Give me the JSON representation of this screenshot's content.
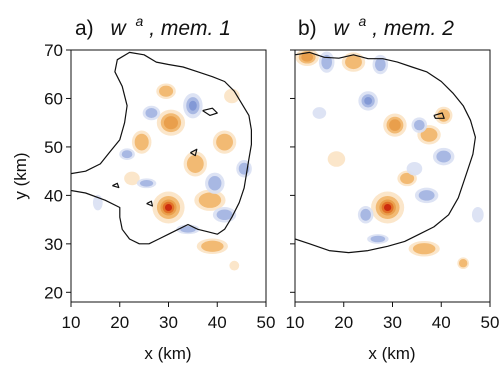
{
  "chart_data": [
    {
      "type": "heatmap",
      "panel_letter": "a)",
      "title_symbol": "w",
      "title_superscript": "a",
      "title_rest": ", mem. 1",
      "xlabel": "x (km)",
      "ylabel": "y (km)",
      "xlim": [
        10,
        50
      ],
      "ylim": [
        18,
        70
      ],
      "xticks": [
        10,
        20,
        30,
        40,
        50
      ],
      "yticks": [
        20,
        30,
        40,
        50,
        60,
        70
      ],
      "grid": false,
      "colors": {
        "strong_positive": "#c81e0a",
        "positive": "#f0b264",
        "weak_positive": "#fbe3c4",
        "negative": "#9fb0df",
        "weak_negative": "#d9e0f3"
      },
      "features": [
        {
          "sign": "positive",
          "x": 30.0,
          "y": 37.5,
          "rx": 3.3,
          "ry": 3.3,
          "amp": 1.0
        },
        {
          "sign": "positive",
          "x": 30.5,
          "y": 55.0,
          "rx": 2.9,
          "ry": 2.7,
          "amp": 0.6
        },
        {
          "sign": "positive",
          "x": 35.5,
          "y": 46.5,
          "rx": 2.4,
          "ry": 2.6,
          "amp": 0.3
        },
        {
          "sign": "positive",
          "x": 38.5,
          "y": 39.0,
          "rx": 3.2,
          "ry": 2.2,
          "amp": 0.28
        },
        {
          "sign": "positive",
          "x": 41.5,
          "y": 51.0,
          "rx": 2.4,
          "ry": 2.4,
          "amp": 0.26
        },
        {
          "sign": "positive",
          "x": 24.5,
          "y": 51.0,
          "rx": 2.0,
          "ry": 2.4,
          "amp": 0.22
        },
        {
          "sign": "positive",
          "x": 39.0,
          "y": 29.5,
          "rx": 3.2,
          "ry": 1.6,
          "amp": 0.25
        },
        {
          "sign": "positive",
          "x": 29.5,
          "y": 61.5,
          "rx": 2.0,
          "ry": 1.6,
          "amp": 0.2
        },
        {
          "sign": "positive",
          "x": 43.0,
          "y": 60.5,
          "rx": 1.6,
          "ry": 1.5,
          "amp": 0.18
        },
        {
          "sign": "positive",
          "x": 43.5,
          "y": 25.5,
          "rx": 1.0,
          "ry": 1.0,
          "amp": 0.15
        },
        {
          "sign": "positive",
          "x": 22.5,
          "y": 43.5,
          "rx": 1.6,
          "ry": 1.4,
          "amp": 0.15
        },
        {
          "sign": "negative",
          "x": 35.0,
          "y": 58.5,
          "rx": 2.0,
          "ry": 2.6,
          "amp": 0.45
        },
        {
          "sign": "negative",
          "x": 39.5,
          "y": 42.5,
          "rx": 2.0,
          "ry": 2.2,
          "amp": 0.3
        },
        {
          "sign": "negative",
          "x": 41.5,
          "y": 36.0,
          "rx": 2.4,
          "ry": 1.6,
          "amp": 0.22
        },
        {
          "sign": "negative",
          "x": 26.5,
          "y": 57.0,
          "rx": 1.8,
          "ry": 1.5,
          "amp": 0.22
        },
        {
          "sign": "negative",
          "x": 21.5,
          "y": 48.5,
          "rx": 1.6,
          "ry": 1.2,
          "amp": 0.2
        },
        {
          "sign": "negative",
          "x": 25.5,
          "y": 42.5,
          "rx": 2.0,
          "ry": 1.0,
          "amp": 0.2
        },
        {
          "sign": "negative",
          "x": 34.0,
          "y": 33.0,
          "rx": 2.4,
          "ry": 1.0,
          "amp": 0.2
        },
        {
          "sign": "negative",
          "x": 45.5,
          "y": 45.5,
          "rx": 1.6,
          "ry": 1.8,
          "amp": 0.2
        },
        {
          "sign": "negative",
          "x": 15.5,
          "y": 38.5,
          "rx": 1.0,
          "ry": 1.6,
          "amp": 0.15
        }
      ],
      "contours": [
        [
          [
            10,
            44.5
          ],
          [
            13,
            45
          ],
          [
            16,
            46.5
          ],
          [
            18,
            49
          ],
          [
            20,
            51.5
          ],
          [
            21,
            55
          ],
          [
            21.5,
            58.5
          ],
          [
            20.5,
            62.5
          ],
          [
            19,
            65.5
          ],
          [
            19.5,
            68
          ],
          [
            22,
            69.5
          ],
          [
            25,
            69
          ],
          [
            27.5,
            67.5
          ],
          [
            30,
            67
          ],
          [
            33,
            66.5
          ],
          [
            36,
            65.5
          ],
          [
            39,
            64.5
          ],
          [
            41.5,
            63.5
          ],
          [
            43.5,
            61.5
          ],
          [
            45,
            59
          ],
          [
            46.5,
            56.5
          ],
          [
            47,
            53.5
          ],
          [
            47,
            50.5
          ],
          [
            46.5,
            47.5
          ],
          [
            46,
            44.5
          ],
          [
            45.5,
            41.5
          ],
          [
            44.5,
            38.5
          ],
          [
            43,
            35.5
          ],
          [
            41.5,
            33
          ],
          [
            40,
            32
          ],
          [
            38,
            32.5
          ],
          [
            36,
            33
          ],
          [
            34,
            34
          ],
          [
            32,
            33
          ],
          [
            30,
            32
          ],
          [
            28,
            31
          ],
          [
            26,
            30
          ],
          [
            24,
            30
          ],
          [
            22,
            31
          ],
          [
            20.5,
            33
          ],
          [
            20,
            35.5
          ],
          [
            20,
            37.5
          ],
          [
            17,
            39
          ],
          [
            13,
            40.5
          ],
          [
            10,
            41
          ]
        ],
        [
          [
            37,
            57.5
          ],
          [
            39,
            58
          ],
          [
            40,
            57
          ],
          [
            38.5,
            56.5
          ],
          [
            37,
            57.5
          ]
        ],
        [
          [
            34.5,
            48.8
          ],
          [
            35.8,
            49.5
          ],
          [
            35.5,
            48.2
          ],
          [
            34.5,
            48.8
          ]
        ],
        [
          [
            18.5,
            42
          ],
          [
            19.5,
            42.5
          ],
          [
            19.8,
            41.6
          ],
          [
            18.5,
            42
          ]
        ],
        [
          [
            25.5,
            38.3
          ],
          [
            26.5,
            38.8
          ],
          [
            26.7,
            37.8
          ],
          [
            25.5,
            38.3
          ]
        ]
      ]
    },
    {
      "type": "heatmap",
      "panel_letter": "b)",
      "title_symbol": "w",
      "title_superscript": "a",
      "title_rest": ", mem. 2",
      "xlabel": "x (km)",
      "xlim": [
        10,
        50
      ],
      "ylim": [
        18,
        70
      ],
      "xticks": [
        10,
        20,
        30,
        40,
        50
      ],
      "grid": false,
      "features": [
        {
          "sign": "positive",
          "x": 29.0,
          "y": 37.5,
          "rx": 3.4,
          "ry": 3.3,
          "amp": 1.0
        },
        {
          "sign": "positive",
          "x": 30.5,
          "y": 54.5,
          "rx": 2.4,
          "ry": 2.4,
          "amp": 0.65
        },
        {
          "sign": "positive",
          "x": 12.5,
          "y": 68.5,
          "rx": 2.4,
          "ry": 1.8,
          "amp": 0.5
        },
        {
          "sign": "positive",
          "x": 22.0,
          "y": 67.5,
          "rx": 2.4,
          "ry": 2.0,
          "amp": 0.3
        },
        {
          "sign": "positive",
          "x": 37.5,
          "y": 52.5,
          "rx": 2.4,
          "ry": 2.0,
          "amp": 0.28
        },
        {
          "sign": "positive",
          "x": 40.5,
          "y": 56.5,
          "rx": 1.8,
          "ry": 1.8,
          "amp": 0.22
        },
        {
          "sign": "positive",
          "x": 33.0,
          "y": 43.5,
          "rx": 2.0,
          "ry": 1.6,
          "amp": 0.22
        },
        {
          "sign": "positive",
          "x": 36.5,
          "y": 29.0,
          "rx": 3.2,
          "ry": 1.6,
          "amp": 0.22
        },
        {
          "sign": "positive",
          "x": 18.5,
          "y": 47.5,
          "rx": 1.8,
          "ry": 1.6,
          "amp": 0.15
        },
        {
          "sign": "positive",
          "x": 44.5,
          "y": 26.0,
          "rx": 1.2,
          "ry": 1.2,
          "amp": 0.2
        },
        {
          "sign": "negative",
          "x": 25.0,
          "y": 59.5,
          "rx": 2.0,
          "ry": 2.0,
          "amp": 0.42
        },
        {
          "sign": "negative",
          "x": 16.5,
          "y": 67.5,
          "rx": 1.6,
          "ry": 2.2,
          "amp": 0.28
        },
        {
          "sign": "negative",
          "x": 27.5,
          "y": 67.0,
          "rx": 1.6,
          "ry": 2.0,
          "amp": 0.28
        },
        {
          "sign": "negative",
          "x": 35.5,
          "y": 54.5,
          "rx": 1.6,
          "ry": 1.6,
          "amp": 0.3
        },
        {
          "sign": "negative",
          "x": 40.5,
          "y": 48.0,
          "rx": 2.2,
          "ry": 1.8,
          "amp": 0.28
        },
        {
          "sign": "negative",
          "x": 37.0,
          "y": 40.0,
          "rx": 2.4,
          "ry": 1.6,
          "amp": 0.25
        },
        {
          "sign": "negative",
          "x": 24.5,
          "y": 36.0,
          "rx": 1.6,
          "ry": 1.8,
          "amp": 0.22
        },
        {
          "sign": "negative",
          "x": 27.0,
          "y": 31.0,
          "rx": 2.2,
          "ry": 1.0,
          "amp": 0.2
        },
        {
          "sign": "negative",
          "x": 34.5,
          "y": 45.5,
          "rx": 1.6,
          "ry": 1.4,
          "amp": 0.18
        },
        {
          "sign": "negative",
          "x": 15.0,
          "y": 57.0,
          "rx": 1.4,
          "ry": 1.2,
          "amp": 0.15
        },
        {
          "sign": "negative",
          "x": 47.5,
          "y": 36.0,
          "rx": 1.2,
          "ry": 1.6,
          "amp": 0.15
        }
      ],
      "contours": [
        [
          [
            10,
            69
          ],
          [
            13,
            69.5
          ],
          [
            16,
            68.5
          ],
          [
            19,
            68.3
          ],
          [
            22,
            69
          ],
          [
            25,
            68.2
          ],
          [
            28,
            68.2
          ],
          [
            31,
            67.5
          ],
          [
            34,
            66.5
          ],
          [
            37,
            65.5
          ],
          [
            40,
            63.5
          ],
          [
            42.5,
            61
          ],
          [
            44.5,
            58.5
          ],
          [
            46,
            55.5
          ],
          [
            47,
            52
          ],
          [
            46.5,
            48.5
          ],
          [
            45.5,
            45.5
          ],
          [
            44.5,
            42.5
          ],
          [
            43.5,
            39.5
          ],
          [
            41.5,
            36
          ],
          [
            38.5,
            33.5
          ],
          [
            35.5,
            32
          ],
          [
            32.5,
            30.5
          ],
          [
            29,
            29.5
          ],
          [
            25,
            28.6
          ],
          [
            21,
            28.2
          ],
          [
            17,
            28.6
          ],
          [
            13,
            30
          ],
          [
            10,
            31
          ]
        ],
        [
          [
            38.5,
            56.5
          ],
          [
            40.2,
            57
          ],
          [
            40.6,
            55.9
          ],
          [
            38.8,
            55.9
          ],
          [
            38.5,
            56.5
          ]
        ]
      ]
    }
  ]
}
